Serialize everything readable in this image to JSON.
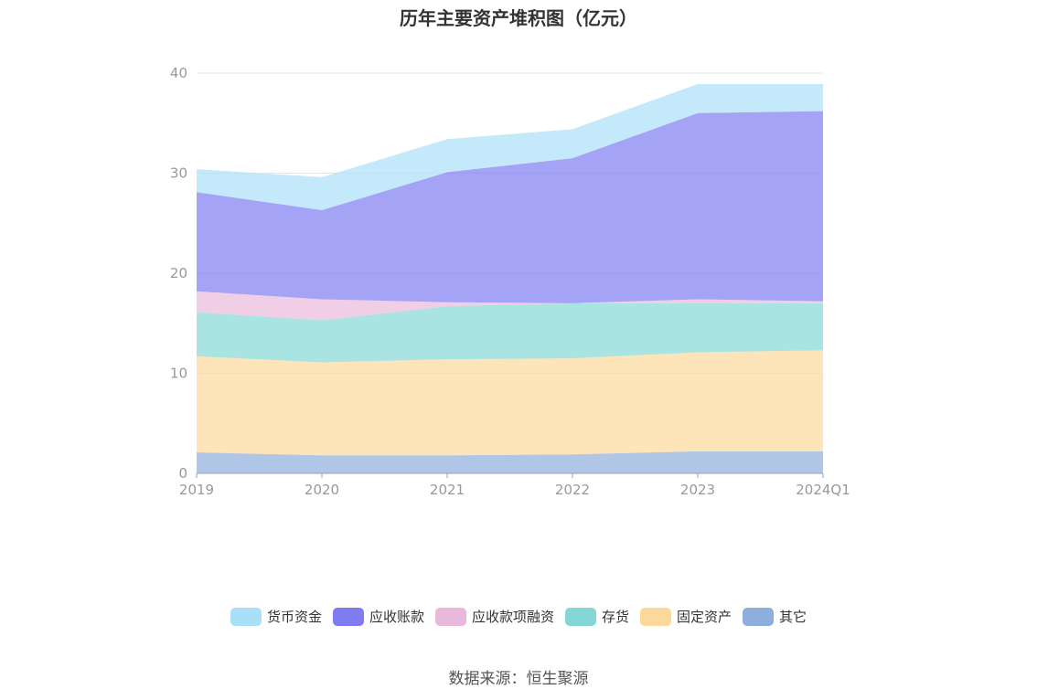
{
  "title": "历年主要资产堆积图（亿元）",
  "source": "数据来源：恒生聚源",
  "chart_data": {
    "type": "area",
    "stacked": true,
    "categories": [
      "2019",
      "2020",
      "2021",
      "2022",
      "2023",
      "2024Q1"
    ],
    "ylim": [
      0,
      40
    ],
    "yticks": [
      0,
      10,
      20,
      30,
      40
    ],
    "grid": true,
    "legend_position": "bottom",
    "series": [
      {
        "name": "其它",
        "color": "#8eaedd",
        "values": [
          2.1,
          1.8,
          1.8,
          1.9,
          2.2,
          2.2
        ]
      },
      {
        "name": "固定资产",
        "color": "#fcd89b",
        "values": [
          9.6,
          9.3,
          9.6,
          9.6,
          9.9,
          10.1
        ]
      },
      {
        "name": "存货",
        "color": "#84d7d6",
        "values": [
          4.4,
          4.2,
          5.3,
          5.5,
          4.9,
          4.7
        ]
      },
      {
        "name": "应收款项融资",
        "color": "#e9b9db",
        "values": [
          2.1,
          2.1,
          0.4,
          0,
          0.4,
          0.2
        ]
      },
      {
        "name": "应收账款",
        "color": "#7f7cf2",
        "values": [
          9.9,
          8.9,
          13.0,
          14.5,
          18.6,
          19.0
        ]
      },
      {
        "name": "货币资金",
        "color": "#a9e0f8",
        "values": [
          2.3,
          3.3,
          3.3,
          2.9,
          2.9,
          2.7
        ]
      }
    ]
  },
  "legend": [
    {
      "label": "货币资金",
      "color": "#a9e0f8"
    },
    {
      "label": "应收账款",
      "color": "#7f7cf2"
    },
    {
      "label": "应收款项融资",
      "color": "#e9b9db"
    },
    {
      "label": "存货",
      "color": "#84d7d6"
    },
    {
      "label": "固定资产",
      "color": "#fcd89b"
    },
    {
      "label": "其它",
      "color": "#8eaedd"
    }
  ]
}
